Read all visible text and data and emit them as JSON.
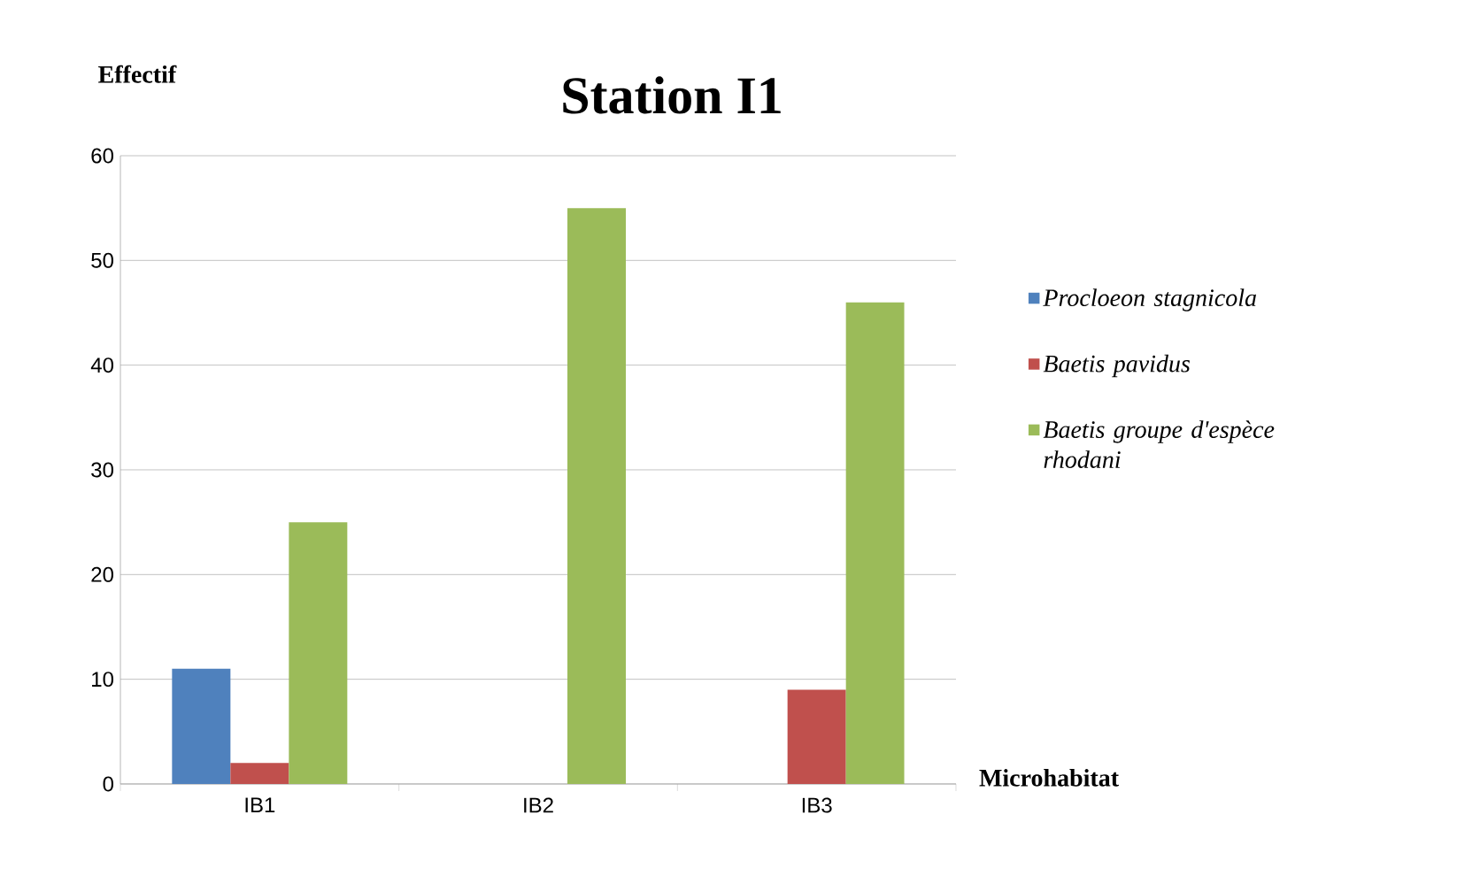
{
  "chart_data": {
    "type": "bar",
    "title": "Station I1",
    "ylabel": "Effectif",
    "xlabel": "Microhabitat",
    "categories": [
      "IB1",
      "IB2",
      "IB3"
    ],
    "series": [
      {
        "name": "Procloeon stagnicola",
        "color": "#4f81bd",
        "values": [
          11,
          0,
          0
        ]
      },
      {
        "name": "Baetis pavidus",
        "color": "#c0504d",
        "values": [
          2,
          0,
          9
        ]
      },
      {
        "name": "Baetis groupe d'espèce rhodani",
        "color": "#9bbb59",
        "values": [
          25,
          55,
          46
        ]
      }
    ],
    "ylim": [
      0,
      60
    ],
    "yticks": [
      0,
      10,
      20,
      30,
      40,
      50,
      60
    ],
    "grid": "y",
    "legend": "right"
  }
}
